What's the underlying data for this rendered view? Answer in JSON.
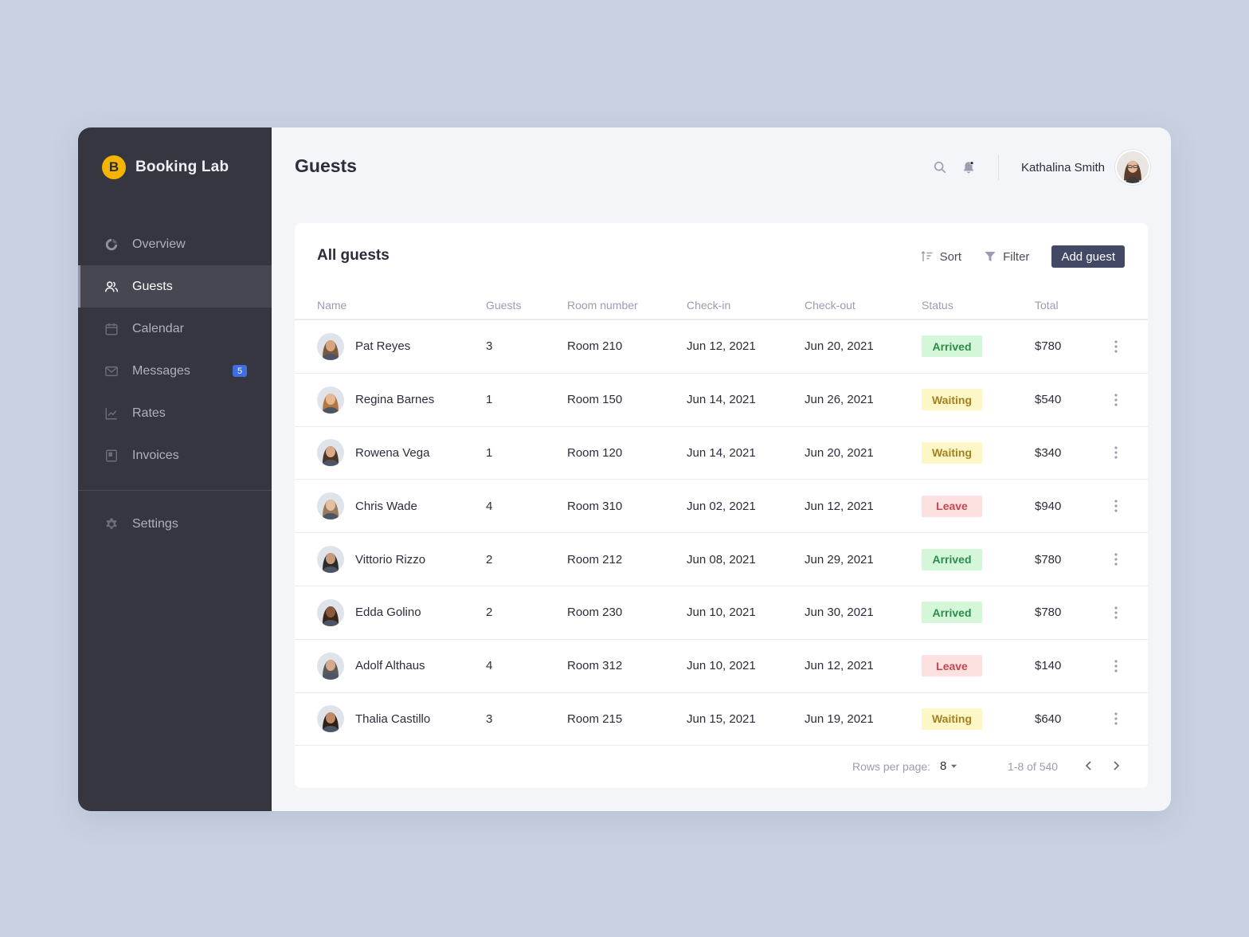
{
  "brand": {
    "logo_letter": "B",
    "name": "Booking Lab",
    "logo_color": "#f5b400"
  },
  "sidebar": {
    "items": [
      {
        "label": "Overview",
        "icon": "overview-icon"
      },
      {
        "label": "Guests",
        "icon": "users-icon",
        "active": true
      },
      {
        "label": "Calendar",
        "icon": "calendar-icon"
      },
      {
        "label": "Messages",
        "icon": "mail-icon",
        "badge": "5"
      },
      {
        "label": "Rates",
        "icon": "chart-icon"
      },
      {
        "label": "Invoices",
        "icon": "invoice-icon"
      }
    ],
    "settings_label": "Settings"
  },
  "header": {
    "title": "Guests",
    "user_name": "Kathalina Smith"
  },
  "card": {
    "title": "All guests",
    "sort_label": "Sort",
    "filter_label": "Filter",
    "add_label": "Add guest"
  },
  "table": {
    "columns": [
      "Name",
      "Guests",
      "Room number",
      "Check-in",
      "Check-out",
      "Status",
      "Total"
    ],
    "rows": [
      {
        "name": "Pat Reyes",
        "guests": "3",
        "room": "Room 210",
        "checkin": "Jun 12, 2021",
        "checkout": "Jun 20, 2021",
        "status": "Arrived",
        "total": "$780"
      },
      {
        "name": "Regina Barnes",
        "guests": "1",
        "room": "Room 150",
        "checkin": "Jun 14, 2021",
        "checkout": "Jun 26, 2021",
        "status": "Waiting",
        "total": "$540"
      },
      {
        "name": "Rowena Vega",
        "guests": "1",
        "room": "Room 120",
        "checkin": "Jun 14, 2021",
        "checkout": "Jun 20, 2021",
        "status": "Waiting",
        "total": "$340"
      },
      {
        "name": "Chris Wade",
        "guests": "4",
        "room": "Room 310",
        "checkin": "Jun 02, 2021",
        "checkout": "Jun 12, 2021",
        "status": "Leave",
        "total": "$940"
      },
      {
        "name": "Vittorio Rizzo",
        "guests": "2",
        "room": "Room 212",
        "checkin": "Jun 08, 2021",
        "checkout": "Jun 29, 2021",
        "status": "Arrived",
        "total": "$780"
      },
      {
        "name": "Edda Golino",
        "guests": "2",
        "room": "Room 230",
        "checkin": "Jun 10, 2021",
        "checkout": "Jun 30, 2021",
        "status": "Arrived",
        "total": "$780"
      },
      {
        "name": "Adolf Althaus",
        "guests": "4",
        "room": "Room 312",
        "checkin": "Jun 10, 2021",
        "checkout": "Jun 12, 2021",
        "status": "Leave",
        "total": "$140"
      },
      {
        "name": "Thalia Castillo",
        "guests": "3",
        "room": "Room 215",
        "checkin": "Jun 15, 2021",
        "checkout": "Jun 19, 2021",
        "status": "Waiting",
        "total": "$640"
      }
    ]
  },
  "pagination": {
    "rows_per_page_label": "Rows per page:",
    "rows_per_page": "8",
    "range": "1-8 of 540"
  },
  "colors": {
    "sidebar_bg": "#363641",
    "accent_button": "#434864",
    "badge": "#3f6ee0",
    "arrived": "#2e8b4a",
    "waiting": "#a08320",
    "leave": "#c44754"
  }
}
